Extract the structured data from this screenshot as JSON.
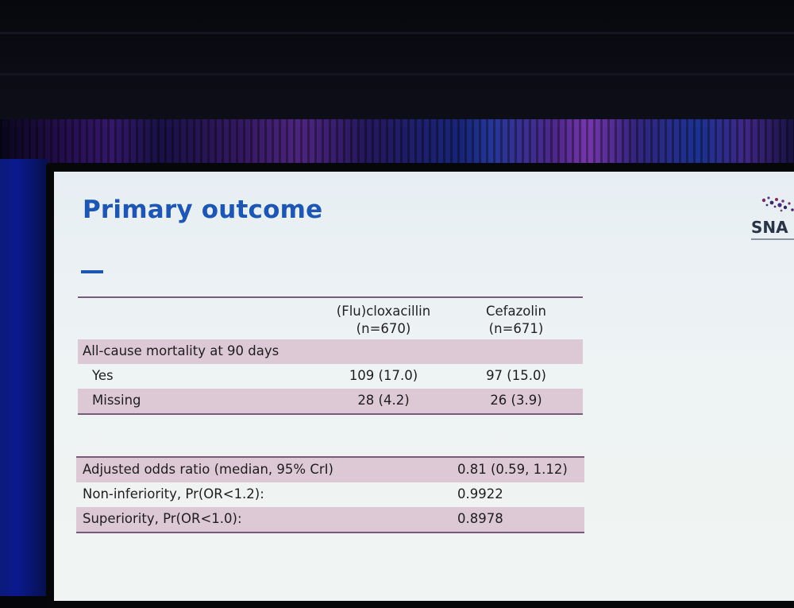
{
  "slide": {
    "title": "Primary outcome",
    "logo_text": "SNA"
  },
  "outcome_table": {
    "columns": [
      {
        "line1": "(Flu)cloxacillin",
        "line2": "(n=670)"
      },
      {
        "line1": "Cefazolin",
        "line2": "(n=671)"
      }
    ],
    "section_label": "All-cause mortality at 90 days",
    "rows": [
      {
        "label": "Yes",
        "values": [
          "109 (17.0)",
          "97 (15.0)"
        ]
      },
      {
        "label": "Missing",
        "values": [
          "28 (4.2)",
          "26 (3.9)"
        ]
      }
    ]
  },
  "stats_table": {
    "rows": [
      {
        "label": "Adjusted odds ratio (median, 95% CrI)",
        "value": "0.81 (0.59, 1.12)"
      },
      {
        "label": "Non-inferiority, Pr(OR<1.2):",
        "value": "0.9922"
      },
      {
        "label": "Superiority, Pr(OR<1.0):",
        "value": "0.8978"
      }
    ]
  },
  "colors": {
    "title_blue": "#1e56b4",
    "row_shade": "#ddc9d6",
    "rule": "#7a5a7a"
  }
}
